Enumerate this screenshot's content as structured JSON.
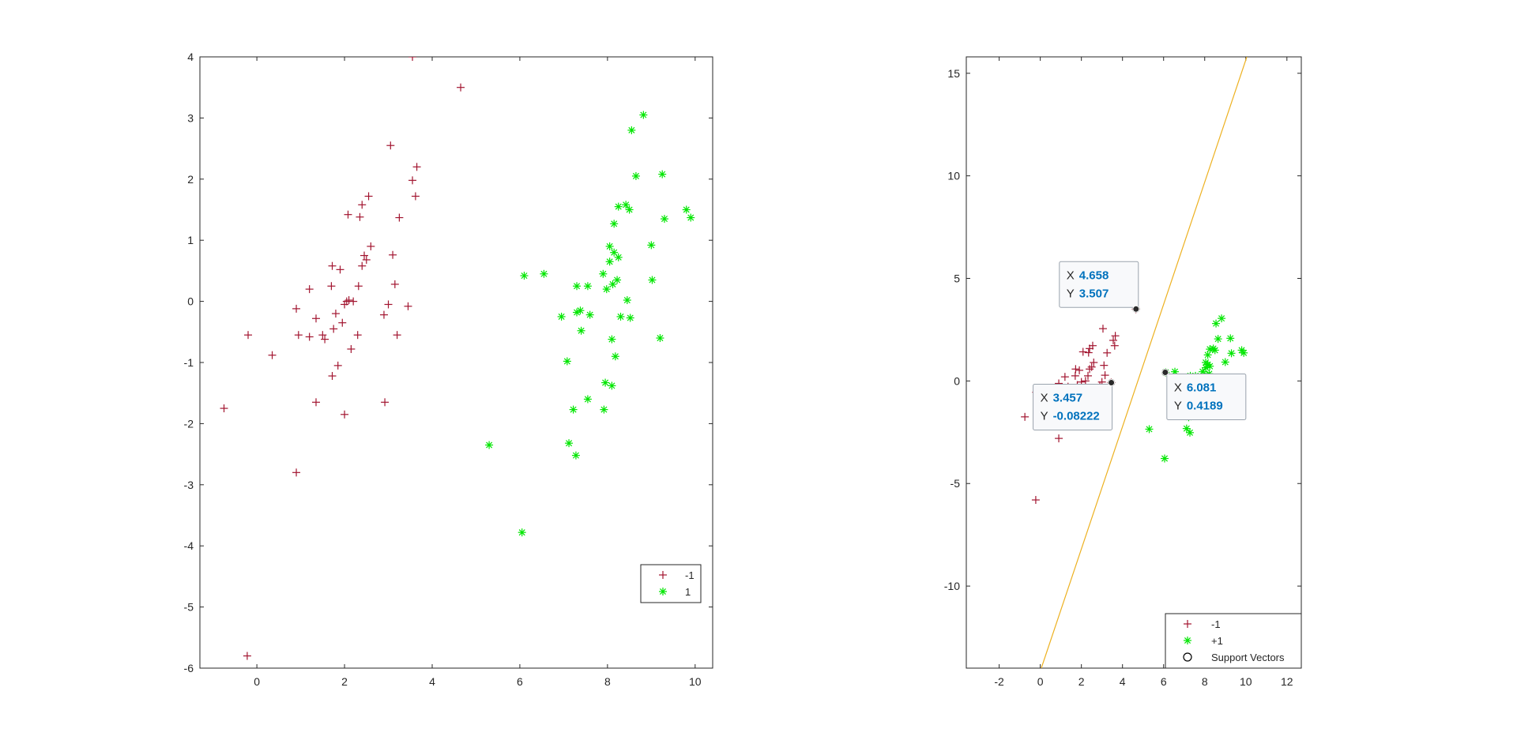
{
  "colors": {
    "neg": "#a2142f",
    "pos": "#00e600",
    "line": "#edb120",
    "axis": "#262626",
    "datatip_value": "#0072bd"
  },
  "chart_data": [
    {
      "type": "scatter",
      "title": "",
      "xlabel": "",
      "ylabel": "",
      "xlim": [
        -1.3,
        10.4
      ],
      "ylim": [
        -6,
        4
      ],
      "xticks": [
        "0",
        "2",
        "4",
        "6",
        "8",
        "10"
      ],
      "yticks": [
        "-6",
        "-5",
        "-4",
        "-3",
        "-2",
        "-1",
        "0",
        "1",
        "2",
        "3",
        "4"
      ],
      "legend": {
        "placement": "bottom-right",
        "entries": [
          "-1",
          "1"
        ]
      },
      "series": [
        {
          "name": "-1",
          "marker": "plus",
          "points": [
            [
              -0.2,
              -0.55
            ],
            [
              -0.75,
              -1.75
            ],
            [
              0.35,
              -0.88
            ],
            [
              0.9,
              -0.12
            ],
            [
              0.95,
              -0.55
            ],
            [
              0.9,
              -2.8
            ],
            [
              -0.22,
              -5.8
            ],
            [
              1.2,
              0.2
            ],
            [
              1.2,
              -0.58
            ],
            [
              1.35,
              -0.28
            ],
            [
              1.35,
              -1.65
            ],
            [
              1.5,
              -0.55
            ],
            [
              1.55,
              -0.62
            ],
            [
              1.7,
              0.25
            ],
            [
              1.72,
              0.58
            ],
            [
              1.72,
              -1.22
            ],
            [
              1.75,
              -0.45
            ],
            [
              1.8,
              -0.2
            ],
            [
              1.85,
              -1.05
            ],
            [
              1.9,
              0.52
            ],
            [
              1.95,
              -0.35
            ],
            [
              2.0,
              -1.85
            ],
            [
              2.0,
              -0.05
            ],
            [
              2.05,
              0.0
            ],
            [
              2.08,
              1.42
            ],
            [
              2.1,
              0.02
            ],
            [
              2.15,
              -0.78
            ],
            [
              2.2,
              0.0
            ],
            [
              2.3,
              -0.55
            ],
            [
              2.32,
              0.25
            ],
            [
              2.35,
              1.38
            ],
            [
              2.4,
              0.58
            ],
            [
              2.4,
              1.58
            ],
            [
              2.45,
              0.75
            ],
            [
              2.5,
              0.68
            ],
            [
              2.55,
              1.72
            ],
            [
              2.6,
              0.9
            ],
            [
              2.9,
              -0.22
            ],
            [
              2.92,
              -1.65
            ],
            [
              3.0,
              -0.05
            ],
            [
              3.05,
              2.55
            ],
            [
              3.1,
              0.76
            ],
            [
              3.15,
              0.28
            ],
            [
              3.2,
              -0.55
            ],
            [
              3.25,
              1.37
            ],
            [
              3.45,
              -0.08
            ],
            [
              3.55,
              1.98
            ],
            [
              3.55,
              4.0
            ],
            [
              3.62,
              1.72
            ],
            [
              3.65,
              2.2
            ],
            [
              4.65,
              3.5
            ]
          ]
        },
        {
          "name": "1",
          "marker": "star",
          "points": [
            [
              5.3,
              -2.35
            ],
            [
              6.05,
              -3.78
            ],
            [
              6.1,
              0.42
            ],
            [
              6.55,
              0.45
            ],
            [
              6.95,
              -0.25
            ],
            [
              7.08,
              -0.98
            ],
            [
              7.12,
              -2.32
            ],
            [
              7.22,
              -1.77
            ],
            [
              7.28,
              -2.52
            ],
            [
              7.3,
              0.25
            ],
            [
              7.3,
              -0.18
            ],
            [
              7.38,
              -0.15
            ],
            [
              7.4,
              -0.48
            ],
            [
              7.55,
              -1.6
            ],
            [
              7.55,
              0.25
            ],
            [
              7.6,
              -0.22
            ],
            [
              7.9,
              0.45
            ],
            [
              7.92,
              -1.77
            ],
            [
              7.95,
              -1.33
            ],
            [
              7.98,
              0.2
            ],
            [
              8.05,
              0.9
            ],
            [
              8.05,
              0.65
            ],
            [
              8.1,
              -1.38
            ],
            [
              8.1,
              -0.62
            ],
            [
              8.12,
              0.28
            ],
            [
              8.15,
              0.8
            ],
            [
              8.15,
              1.27
            ],
            [
              8.18,
              -0.9
            ],
            [
              8.22,
              0.35
            ],
            [
              8.25,
              0.72
            ],
            [
              8.25,
              1.55
            ],
            [
              8.3,
              -0.25
            ],
            [
              8.42,
              1.58
            ],
            [
              8.45,
              0.02
            ],
            [
              8.5,
              1.5
            ],
            [
              8.52,
              -0.27
            ],
            [
              8.55,
              2.8
            ],
            [
              8.65,
              2.05
            ],
            [
              8.82,
              3.05
            ],
            [
              9.0,
              0.92
            ],
            [
              9.02,
              0.35
            ],
            [
              9.2,
              -0.6
            ],
            [
              9.25,
              2.08
            ],
            [
              9.3,
              1.35
            ],
            [
              9.8,
              1.5
            ],
            [
              9.9,
              1.37
            ]
          ]
        }
      ]
    },
    {
      "type": "scatter",
      "title": "",
      "xlabel": "",
      "ylabel": "",
      "xlim": [
        -3.6,
        12.7
      ],
      "ylim": [
        -14,
        15.8
      ],
      "xticks": [
        "-2",
        "0",
        "2",
        "4",
        "6",
        "8",
        "10",
        "12"
      ],
      "yticks": [
        "-10",
        "-5",
        "0",
        "5",
        "10",
        "15"
      ],
      "legend": {
        "placement": "bottom-right",
        "entries": [
          "-1",
          "+1",
          "Support Vectors"
        ]
      },
      "decision_boundary": [
        [
          0.05,
          -14
        ],
        [
          10.05,
          15.8
        ]
      ],
      "support_vectors": [
        [
          4.658,
          3.507
        ],
        [
          3.457,
          -0.08222
        ],
        [
          6.081,
          0.4189
        ]
      ],
      "datatips": [
        {
          "x_label": "X",
          "x_value": "4.658",
          "y_label": "Y",
          "y_value": "3.507",
          "x": 4.658,
          "y": 3.507,
          "side": "upper-left"
        },
        {
          "x_label": "X",
          "x_value": "3.457",
          "y_label": "Y",
          "y_value": "-0.08222",
          "x": 3.457,
          "y": -0.08222,
          "side": "lower-left"
        },
        {
          "x_label": "X",
          "x_value": "6.081",
          "y_label": "Y",
          "y_value": "0.4189",
          "x": 6.081,
          "y": 0.4189,
          "side": "lower-right"
        }
      ],
      "series": [
        {
          "name": "-1",
          "marker": "plus",
          "points": [
            [
              -0.2,
              -0.55
            ],
            [
              -0.75,
              -1.75
            ],
            [
              0.35,
              -0.88
            ],
            [
              0.9,
              -0.12
            ],
            [
              0.95,
              -0.55
            ],
            [
              0.9,
              -2.8
            ],
            [
              -0.22,
              -5.8
            ],
            [
              1.2,
              0.2
            ],
            [
              1.2,
              -0.58
            ],
            [
              1.35,
              -0.28
            ],
            [
              1.5,
              -0.55
            ],
            [
              1.7,
              0.25
            ],
            [
              1.72,
              0.58
            ],
            [
              1.8,
              -0.2
            ],
            [
              1.9,
              0.52
            ],
            [
              2.0,
              -0.05
            ],
            [
              2.08,
              1.42
            ],
            [
              2.15,
              -0.78
            ],
            [
              2.2,
              0.0
            ],
            [
              2.32,
              0.25
            ],
            [
              2.35,
              1.38
            ],
            [
              2.4,
              0.58
            ],
            [
              2.4,
              1.58
            ],
            [
              2.5,
              0.68
            ],
            [
              2.55,
              1.72
            ],
            [
              2.6,
              0.9
            ],
            [
              2.9,
              -0.22
            ],
            [
              3.0,
              -0.05
            ],
            [
              3.05,
              2.55
            ],
            [
              3.1,
              0.76
            ],
            [
              3.15,
              0.28
            ],
            [
              3.25,
              1.37
            ],
            [
              3.45,
              -0.08
            ],
            [
              3.55,
              1.98
            ],
            [
              3.62,
              1.72
            ],
            [
              3.65,
              2.2
            ],
            [
              4.65,
              3.5
            ]
          ]
        },
        {
          "name": "+1",
          "marker": "star",
          "points": [
            [
              5.3,
              -2.35
            ],
            [
              6.05,
              -3.78
            ],
            [
              6.1,
              0.42
            ],
            [
              6.55,
              0.45
            ],
            [
              6.95,
              -0.25
            ],
            [
              7.08,
              -0.98
            ],
            [
              7.12,
              -2.32
            ],
            [
              7.22,
              -1.77
            ],
            [
              7.28,
              -2.52
            ],
            [
              7.3,
              0.25
            ],
            [
              7.38,
              -0.15
            ],
            [
              7.55,
              0.25
            ],
            [
              7.9,
              0.45
            ],
            [
              7.98,
              0.2
            ],
            [
              8.05,
              0.9
            ],
            [
              8.05,
              0.65
            ],
            [
              8.12,
              0.28
            ],
            [
              8.15,
              0.8
            ],
            [
              8.15,
              1.27
            ],
            [
              8.22,
              0.35
            ],
            [
              8.25,
              0.72
            ],
            [
              8.25,
              1.55
            ],
            [
              8.42,
              1.58
            ],
            [
              8.45,
              0.02
            ],
            [
              8.5,
              1.5
            ],
            [
              8.55,
              2.8
            ],
            [
              8.65,
              2.05
            ],
            [
              8.82,
              3.05
            ],
            [
              9.0,
              0.92
            ],
            [
              9.25,
              2.08
            ],
            [
              9.3,
              1.35
            ],
            [
              9.8,
              1.5
            ],
            [
              9.9,
              1.37
            ]
          ]
        }
      ]
    }
  ]
}
